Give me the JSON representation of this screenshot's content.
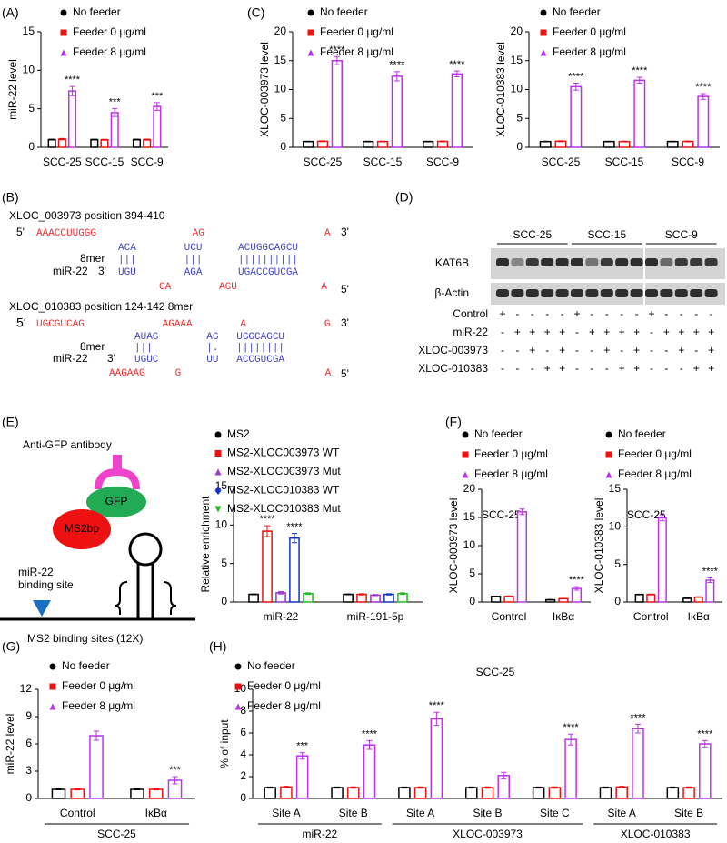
{
  "chart_data": [
    {
      "panel": "(A)",
      "type": "bar",
      "ylabel": "miR-22 level",
      "categories": [
        "SCC-25",
        "SCC-15",
        "SCC-9"
      ],
      "ylim": [
        0,
        15
      ],
      "yticks": [
        0,
        5,
        10,
        15
      ],
      "series": [
        {
          "name": "No feeder",
          "color": "#000000",
          "marker": "circle",
          "values": [
            1,
            1,
            1
          ],
          "errors": [
            0.05,
            0.05,
            0.05
          ]
        },
        {
          "name": "Feeder 0 μg/ml",
          "color": "#ee1111",
          "marker": "square",
          "values": [
            1.05,
            0.98,
            1.0
          ],
          "errors": [
            0.08,
            0.06,
            0.07
          ]
        },
        {
          "name": "Feeder 8 μg/ml",
          "color": "#bb33ee",
          "marker": "triangle",
          "values": [
            7.3,
            4.5,
            5.3
          ],
          "errors": [
            0.6,
            0.5,
            0.5
          ],
          "annotations": [
            "****",
            "***",
            "***"
          ]
        }
      ]
    },
    {
      "panel": "(C)",
      "type": "bar",
      "ylabel": "XLOC-003973 level",
      "categories": [
        "SCC-25",
        "SCC-15",
        "SCC-9"
      ],
      "ylim": [
        0,
        20
      ],
      "yticks": [
        0,
        5,
        10,
        15,
        20
      ],
      "series": [
        {
          "name": "No feeder",
          "color": "#000000",
          "marker": "circle",
          "values": [
            1,
            1,
            1
          ],
          "errors": [
            0.05,
            0.05,
            0.05
          ]
        },
        {
          "name": "Feeder 0 μg/ml",
          "color": "#ee1111",
          "marker": "square",
          "values": [
            1.05,
            1.0,
            1.02
          ],
          "errors": [
            0.08,
            0.06,
            0.07
          ]
        },
        {
          "name": "Feeder 8 μg/ml",
          "color": "#bb33ee",
          "marker": "triangle",
          "values": [
            15.0,
            12.3,
            12.7
          ],
          "errors": [
            0.7,
            0.8,
            0.5
          ],
          "annotations": [
            "****",
            "****",
            "****"
          ]
        }
      ]
    },
    {
      "type": "bar",
      "ylabel": "XLOC-010383 level",
      "categories": [
        "SCC-25",
        "SCC-15",
        "SCC-9"
      ],
      "ylim": [
        0,
        20
      ],
      "yticks": [
        0,
        5,
        10,
        15,
        20
      ],
      "series": [
        {
          "name": "No feeder",
          "color": "#000000",
          "marker": "circle",
          "values": [
            1,
            1,
            1
          ],
          "errors": [
            0.05,
            0.05,
            0.05
          ]
        },
        {
          "name": "Feeder 0 μg/ml",
          "color": "#ee1111",
          "marker": "square",
          "values": [
            1.05,
            1.0,
            1.02
          ],
          "errors": [
            0.08,
            0.06,
            0.07
          ]
        },
        {
          "name": "Feeder 8 μg/ml",
          "color": "#bb33ee",
          "marker": "triangle",
          "values": [
            10.5,
            11.6,
            8.8
          ],
          "errors": [
            0.6,
            0.5,
            0.5
          ],
          "annotations": [
            "****",
            "****",
            "****"
          ]
        }
      ]
    },
    {
      "type": "bar",
      "ylabel": "Relative enrichment",
      "categories": [
        "miR-22",
        "miR-191-5p"
      ],
      "ylim": [
        0,
        15
      ],
      "yticks": [
        0,
        5,
        10,
        15
      ],
      "series": [
        {
          "name": "MS2",
          "color": "#000000",
          "marker": "circle",
          "values": [
            1,
            1
          ],
          "errors": [
            0.05,
            0.05
          ]
        },
        {
          "name": "MS2-XLOC003973 WT",
          "color": "#ee1111",
          "marker": "square",
          "values": [
            9.2,
            1.0
          ],
          "errors": [
            0.7,
            0.08
          ],
          "annotations": [
            "****",
            null
          ]
        },
        {
          "name": "MS2-XLOC003973 Mut",
          "color": "#9933cc",
          "marker": "triangle",
          "values": [
            1.2,
            0.9
          ],
          "errors": [
            0.15,
            0.08
          ]
        },
        {
          "name": "MS2-XLOC010383 WT",
          "color": "#1133cc",
          "marker": "diamond",
          "values": [
            8.3,
            1.0
          ],
          "errors": [
            0.6,
            0.08
          ],
          "annotations": [
            "****",
            null
          ]
        },
        {
          "name": "MS2-XLOC010383 Mut",
          "color": "#22bb22",
          "marker": "triangle-down",
          "values": [
            1.1,
            1.1
          ],
          "errors": [
            0.1,
            0.1
          ]
        }
      ]
    },
    {
      "panel": "(F)",
      "type": "bar",
      "subtitle": "SCC-25",
      "ylabel": "XLOC-003973 level",
      "categories": [
        "Control",
        "IκBα"
      ],
      "ylim": [
        0,
        20
      ],
      "yticks": [
        0,
        5,
        10,
        15,
        20
      ],
      "series": [
        {
          "name": "No feeder",
          "color": "#000000",
          "marker": "circle",
          "values": [
            1,
            0.4
          ],
          "errors": [
            0.05,
            0.05
          ]
        },
        {
          "name": "Feeder 0 μg/ml",
          "color": "#ee1111",
          "marker": "square",
          "values": [
            1.0,
            0.6
          ],
          "errors": [
            0.06,
            0.05
          ]
        },
        {
          "name": "Feeder 8 μg/ml",
          "color": "#bb33ee",
          "marker": "triangle",
          "values": [
            16.0,
            2.4
          ],
          "errors": [
            0.5,
            0.3
          ],
          "annotations": [
            null,
            "****"
          ]
        }
      ]
    },
    {
      "type": "bar",
      "subtitle": "SCC-25",
      "ylabel": "XLOC-010383 level",
      "categories": [
        "Control",
        "IκBα"
      ],
      "ylim": [
        0,
        15
      ],
      "yticks": [
        0,
        5,
        10,
        15
      ],
      "series": [
        {
          "name": "No feeder",
          "color": "#000000",
          "marker": "circle",
          "values": [
            1,
            0.5
          ],
          "errors": [
            0.05,
            0.05
          ]
        },
        {
          "name": "Feeder 0 μg/ml",
          "color": "#ee1111",
          "marker": "square",
          "values": [
            1.0,
            0.65
          ],
          "errors": [
            0.06,
            0.05
          ]
        },
        {
          "name": "Feeder 8 μg/ml",
          "color": "#bb33ee",
          "marker": "triangle",
          "values": [
            11.2,
            2.9
          ],
          "errors": [
            0.4,
            0.3
          ],
          "annotations": [
            null,
            "****"
          ]
        }
      ]
    },
    {
      "panel": "(G)",
      "type": "bar",
      "ylabel": "miR-22 level",
      "categories": [
        "Control",
        "IκBα"
      ],
      "ylim": [
        0,
        12
      ],
      "yticks": [
        0,
        3,
        6,
        9,
        12
      ],
      "group_labels": [
        {
          "text": "SCC-25",
          "from": 0,
          "to": 1
        }
      ],
      "series": [
        {
          "name": "No feeder",
          "color": "#000000",
          "marker": "circle",
          "values": [
            1,
            1
          ],
          "errors": [
            0.05,
            0.05
          ]
        },
        {
          "name": "Feeder 0 μg/ml",
          "color": "#ee1111",
          "marker": "square",
          "values": [
            1.0,
            1.0
          ],
          "errors": [
            0.06,
            0.06
          ]
        },
        {
          "name": "Feeder 8 μg/ml",
          "color": "#bb33ee",
          "marker": "triangle",
          "values": [
            6.9,
            2.0
          ],
          "errors": [
            0.5,
            0.4
          ],
          "annotations": [
            null,
            "***"
          ]
        }
      ]
    },
    {
      "panel": "(H)",
      "type": "bar",
      "title": "SCC-25",
      "ylabel": "% of input",
      "categories": [
        "Site A",
        "Site B",
        "Site A",
        "Site B",
        "Site C",
        "Site A",
        "Site B"
      ],
      "ylim": [
        0,
        10
      ],
      "yticks": [
        0,
        2,
        4,
        6,
        8,
        10
      ],
      "group_labels": [
        {
          "text": "miR-22",
          "from": 0,
          "to": 1
        },
        {
          "text": "XLOC-003973",
          "from": 2,
          "to": 4
        },
        {
          "text": "XLOC-010383",
          "from": 5,
          "to": 6
        }
      ],
      "series": [
        {
          "name": "No feeder",
          "color": "#000000",
          "marker": "circle",
          "values": [
            1,
            1,
            1,
            1,
            1,
            1,
            1
          ],
          "errors": [
            0.05,
            0.05,
            0.05,
            0.05,
            0.05,
            0.05,
            0.05
          ]
        },
        {
          "name": "Feeder 0 μg/ml",
          "color": "#ee1111",
          "marker": "square",
          "values": [
            1.05,
            1.0,
            1.0,
            1.0,
            1.0,
            1.05,
            1.0
          ],
          "errors": [
            0.06,
            0.06,
            0.06,
            0.06,
            0.06,
            0.06,
            0.06
          ]
        },
        {
          "name": "Feeder 8 μg/ml",
          "color": "#bb33ee",
          "marker": "triangle",
          "values": [
            3.9,
            4.9,
            7.3,
            2.1,
            5.4,
            6.4,
            5.0
          ],
          "errors": [
            0.3,
            0.4,
            0.6,
            0.3,
            0.5,
            0.4,
            0.3
          ],
          "annotations": [
            "***",
            "****",
            "****",
            null,
            "****",
            "****",
            "****"
          ]
        }
      ]
    }
  ],
  "panel_b": {
    "label": "(B)",
    "alignments": [
      {
        "title": "XLOC_003973  position 394-410",
        "end5": "5'",
        "target_unpaired": "AAACCUUGGG                AG                    A",
        "end3": "3'",
        "target_paired": "ACA        UCU      ACUGGCAGCU",
        "bonds": "|||        |||      ||||||||||",
        "seed": "8mer",
        "mirna": "miR-22",
        "mirna_end3": "3'",
        "mirna_paired": "UGU        AGA      UGACCGUCGA",
        "mirna_unpaired": "CA        AGU              A",
        "mirna_end5": "5'"
      },
      {
        "title": "XLOC_010383  position 124-142 8mer",
        "end5": "5‘",
        "target_unpaired": "UGCGUCAG             AGAAA        A             G",
        "end3": "3'",
        "target_paired": "AUAG        AG   UGGCAGCU",
        "bonds": "|||         |.   ||||||||",
        "seed": "8mer",
        "mirna": "miR-22",
        "mirna_end3": "3'",
        "mirna_paired": "UGUC        UU   ACCGUCGA",
        "mirna_unpaired": "AAGAAG     G                        A",
        "mirna_end5": "5'"
      }
    ]
  },
  "panel_d": {
    "label": "(D)",
    "cell_lines": [
      "SCC-25",
      "SCC-15",
      "SCC-9"
    ],
    "blots": [
      "KAT6B",
      "β-Actin"
    ],
    "conditions": [
      {
        "name": "Control",
        "signs": [
          "+",
          "-",
          "-",
          "-",
          "-",
          "+",
          "-",
          "-",
          "-",
          "-",
          "+",
          "-",
          "-",
          "-",
          "-"
        ]
      },
      {
        "name": "miR-22",
        "signs": [
          "-",
          "+",
          "+",
          "+",
          "+",
          "-",
          "+",
          "+",
          "+",
          "+",
          "-",
          "+",
          "+",
          "+",
          "+"
        ]
      },
      {
        "name": "XLOC-003973",
        "signs": [
          "-",
          "-",
          "+",
          "-",
          "+",
          "-",
          "-",
          "+",
          "-",
          "+",
          "-",
          "-",
          "+",
          "-",
          "+"
        ]
      },
      {
        "name": "XLOC-010383",
        "signs": [
          "-",
          "-",
          "-",
          "+",
          "+",
          "-",
          "-",
          "-",
          "+",
          "+",
          "-",
          "-",
          "-",
          "+",
          "+"
        ]
      }
    ]
  },
  "panel_e": {
    "label": "(E)",
    "antibody": "Anti-GFP antibody",
    "gfp": "GFP",
    "ms2bp": "MS2bp",
    "mirna_site": [
      "miR-22",
      "binding site"
    ],
    "ms2_sites": "MS2 binding sites (12X)"
  }
}
